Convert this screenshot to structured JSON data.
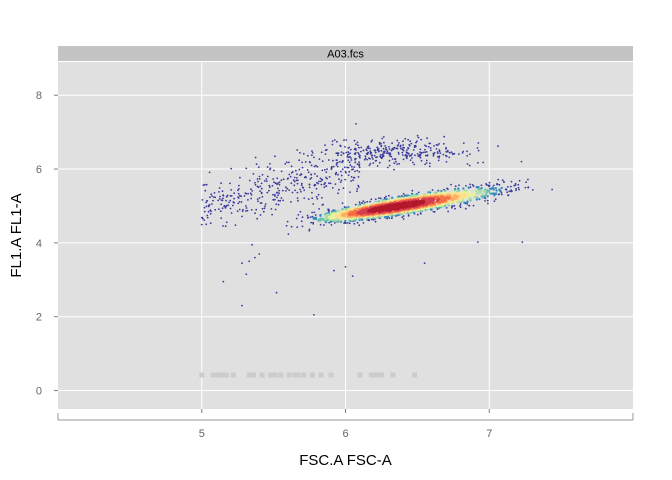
{
  "chart_data": {
    "type": "scatter",
    "title": "",
    "panel_label": "A03.fcs",
    "xlabel": "FSC.A FSC-A",
    "ylabel": "FL1.A FL1-A",
    "xlim": [
      4.0,
      8.0
    ],
    "ylim": [
      -0.5,
      8.9
    ],
    "xticks": [
      5,
      6,
      7
    ],
    "yticks": [
      0,
      2,
      4,
      6,
      8
    ],
    "grid": true,
    "panel_background": "#e0e0e0",
    "strip_background": "#c4c4c4",
    "density_colors": [
      "#3a3a9c",
      "#3288bd",
      "#66c2a5",
      "#abdda4",
      "#e6f598",
      "#fee08b",
      "#fdae61",
      "#f46d43",
      "#d53e4f",
      "#b2182b"
    ],
    "outlier_color": "#cccccc",
    "series": [
      {
        "role": "main-cluster",
        "n_points": 2200,
        "x_mean": 6.45,
        "y_mean": 5.05,
        "x_sd": 0.3,
        "y_sd": 0.22,
        "correlation": 0.85,
        "density_peak": [
          6.35,
          4.98
        ]
      },
      {
        "role": "upper-left-tail",
        "n_points": 380,
        "x_range": [
          5.0,
          6.1
        ],
        "y_range": [
          4.3,
          6.3
        ],
        "trend": "increasing"
      },
      {
        "role": "upper-cluster",
        "n_points": 320,
        "x_mean": 6.35,
        "y_mean": 6.45,
        "x_sd": 0.28,
        "y_sd": 0.18
      },
      {
        "role": "scattered-low",
        "points": [
          [
            5.28,
            3.45
          ],
          [
            5.31,
            3.15
          ],
          [
            5.33,
            3.5
          ],
          [
            5.35,
            3.95
          ],
          [
            5.37,
            3.6
          ],
          [
            5.4,
            3.7
          ],
          [
            5.15,
            2.95
          ],
          [
            5.28,
            2.3
          ],
          [
            5.52,
            2.65
          ],
          [
            5.78,
            2.05
          ],
          [
            5.92,
            3.25
          ],
          [
            6.0,
            3.35
          ],
          [
            6.05,
            3.1
          ],
          [
            6.55,
            3.45
          ],
          [
            6.92,
            4.02
          ],
          [
            7.23,
            4.02
          ]
        ]
      },
      {
        "role": "zero-events",
        "y": 0.42,
        "x": [
          5.0,
          5.08,
          5.11,
          5.14,
          5.17,
          5.22,
          5.33,
          5.36,
          5.42,
          5.48,
          5.51,
          5.55,
          5.61,
          5.65,
          5.67,
          5.71,
          5.77,
          5.83,
          5.9,
          6.1,
          6.18,
          6.2,
          6.22,
          6.25,
          6.33,
          6.48
        ]
      }
    ]
  }
}
